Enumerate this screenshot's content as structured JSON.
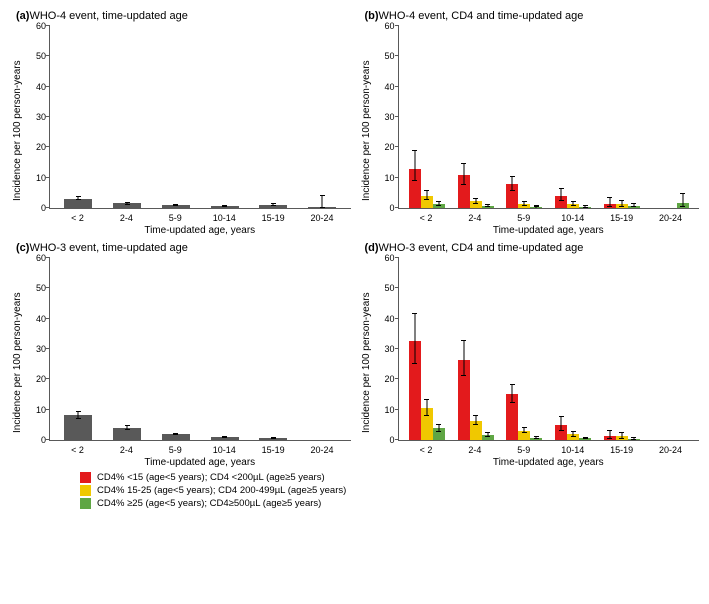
{
  "colors": {
    "single": "#595959",
    "red": "#e31a1c",
    "yellow": "#f0c800",
    "green": "#5fa644",
    "axis": "#595959",
    "bg": "#ffffff"
  },
  "ylim": 60,
  "yticks": [
    0,
    10,
    20,
    30,
    40,
    50,
    60
  ],
  "ylabel": "Incidence per 100 person-years",
  "xlabel": "Time-updated age, years",
  "categories": [
    "< 2",
    "2-4",
    "5-9",
    "10-14",
    "15-19",
    "20-24"
  ],
  "panels": {
    "a": {
      "label": "(a)",
      "title": "WHO-4 event, time-updated age",
      "type": "single",
      "bars": [
        {
          "v": 3.1,
          "hi": 4.0,
          "lo": 2.5
        },
        {
          "v": 1.5,
          "hi": 2.1,
          "lo": 1.1
        },
        {
          "v": 0.9,
          "hi": 1.3,
          "lo": 0.6
        },
        {
          "v": 0.7,
          "hi": 1.1,
          "lo": 0.4
        },
        {
          "v": 1.0,
          "hi": 1.7,
          "lo": 0.5
        },
        {
          "v": 0.3,
          "hi": 4.2,
          "lo": 0.0
        }
      ]
    },
    "b": {
      "label": "(b)",
      "title": "WHO-4 event, CD4 and time-updated age",
      "type": "grouped",
      "groups": [
        [
          {
            "v": 13.0,
            "hi": 19.0,
            "lo": 9.0
          },
          {
            "v": 4.0,
            "hi": 6.0,
            "lo": 2.5
          },
          {
            "v": 1.2,
            "hi": 2.2,
            "lo": 0.6
          }
        ],
        [
          {
            "v": 11.0,
            "hi": 15.0,
            "lo": 7.5
          },
          {
            "v": 2.2,
            "hi": 3.4,
            "lo": 1.3
          },
          {
            "v": 0.7,
            "hi": 1.4,
            "lo": 0.3
          }
        ],
        [
          {
            "v": 7.8,
            "hi": 10.5,
            "lo": 5.5
          },
          {
            "v": 1.3,
            "hi": 2.2,
            "lo": 0.7
          },
          {
            "v": 0.45,
            "hi": 0.9,
            "lo": 0.2
          }
        ],
        [
          {
            "v": 3.8,
            "hi": 6.5,
            "lo": 2.2
          },
          {
            "v": 1.2,
            "hi": 2.2,
            "lo": 0.6
          },
          {
            "v": 0.4,
            "hi": 0.9,
            "lo": 0.15
          }
        ],
        [
          {
            "v": 1.3,
            "hi": 3.5,
            "lo": 0.4
          },
          {
            "v": 1.2,
            "hi": 2.6,
            "lo": 0.45
          },
          {
            "v": 0.7,
            "hi": 1.7,
            "lo": 0.2
          }
        ],
        [
          {
            "v": 0.0,
            "hi": 0.0,
            "lo": 0.0
          },
          {
            "v": 0.0,
            "hi": 0.0,
            "lo": 0.0
          },
          {
            "v": 1.5,
            "hi": 5.0,
            "lo": 0.3
          }
        ]
      ]
    },
    "c": {
      "label": "(c)",
      "title": "WHO-3 event, time-updated age",
      "type": "single",
      "bars": [
        {
          "v": 8.2,
          "hi": 9.5,
          "lo": 7.0
        },
        {
          "v": 4.0,
          "hi": 4.8,
          "lo": 3.4
        },
        {
          "v": 1.9,
          "hi": 2.4,
          "lo": 1.5
        },
        {
          "v": 0.9,
          "hi": 1.4,
          "lo": 0.6
        },
        {
          "v": 0.6,
          "hi": 1.1,
          "lo": 0.3
        },
        {
          "v": 0.0,
          "hi": 0.0,
          "lo": 0.0
        }
      ]
    },
    "d": {
      "label": "(d)",
      "title": "WHO-3 event, CD4 and time-updated age",
      "type": "grouped",
      "groups": [
        [
          {
            "v": 32.5,
            "hi": 42.0,
            "lo": 25.0
          },
          {
            "v": 10.5,
            "hi": 13.5,
            "lo": 8.0
          },
          {
            "v": 3.8,
            "hi": 5.4,
            "lo": 2.6
          }
        ],
        [
          {
            "v": 26.5,
            "hi": 33.0,
            "lo": 21.0
          },
          {
            "v": 6.3,
            "hi": 8.2,
            "lo": 4.8
          },
          {
            "v": 1.6,
            "hi": 2.6,
            "lo": 1.0
          }
        ],
        [
          {
            "v": 15.2,
            "hi": 18.5,
            "lo": 12.3
          },
          {
            "v": 3.1,
            "hi": 4.3,
            "lo": 2.2
          },
          {
            "v": 0.8,
            "hi": 1.4,
            "lo": 0.4
          }
        ],
        [
          {
            "v": 4.9,
            "hi": 7.8,
            "lo": 3.0
          },
          {
            "v": 1.9,
            "hi": 3.1,
            "lo": 1.1
          },
          {
            "v": 0.5,
            "hi": 1.0,
            "lo": 0.2
          }
        ],
        [
          {
            "v": 1.2,
            "hi": 3.2,
            "lo": 0.3
          },
          {
            "v": 1.2,
            "hi": 2.7,
            "lo": 0.4
          },
          {
            "v": 0.35,
            "hi": 1.1,
            "lo": 0.07
          }
        ],
        [
          {
            "v": 0.0,
            "hi": 0.0,
            "lo": 0.0
          },
          {
            "v": 0.0,
            "hi": 0.0,
            "lo": 0.0
          },
          {
            "v": 0.0,
            "hi": 0.0,
            "lo": 0.0
          }
        ]
      ]
    }
  },
  "legend": [
    {
      "color": "red",
      "text": "CD4% <15 (age<5 years); CD4 <200µL (age≥5 years)"
    },
    {
      "color": "yellow",
      "text": "CD4% 15-25 (age<5 years); CD4 200-499µL (age≥5 years)"
    },
    {
      "color": "green",
      "text": "CD4% ≥25 (age<5 years); CD4≥500µL (age≥5 years)"
    }
  ]
}
